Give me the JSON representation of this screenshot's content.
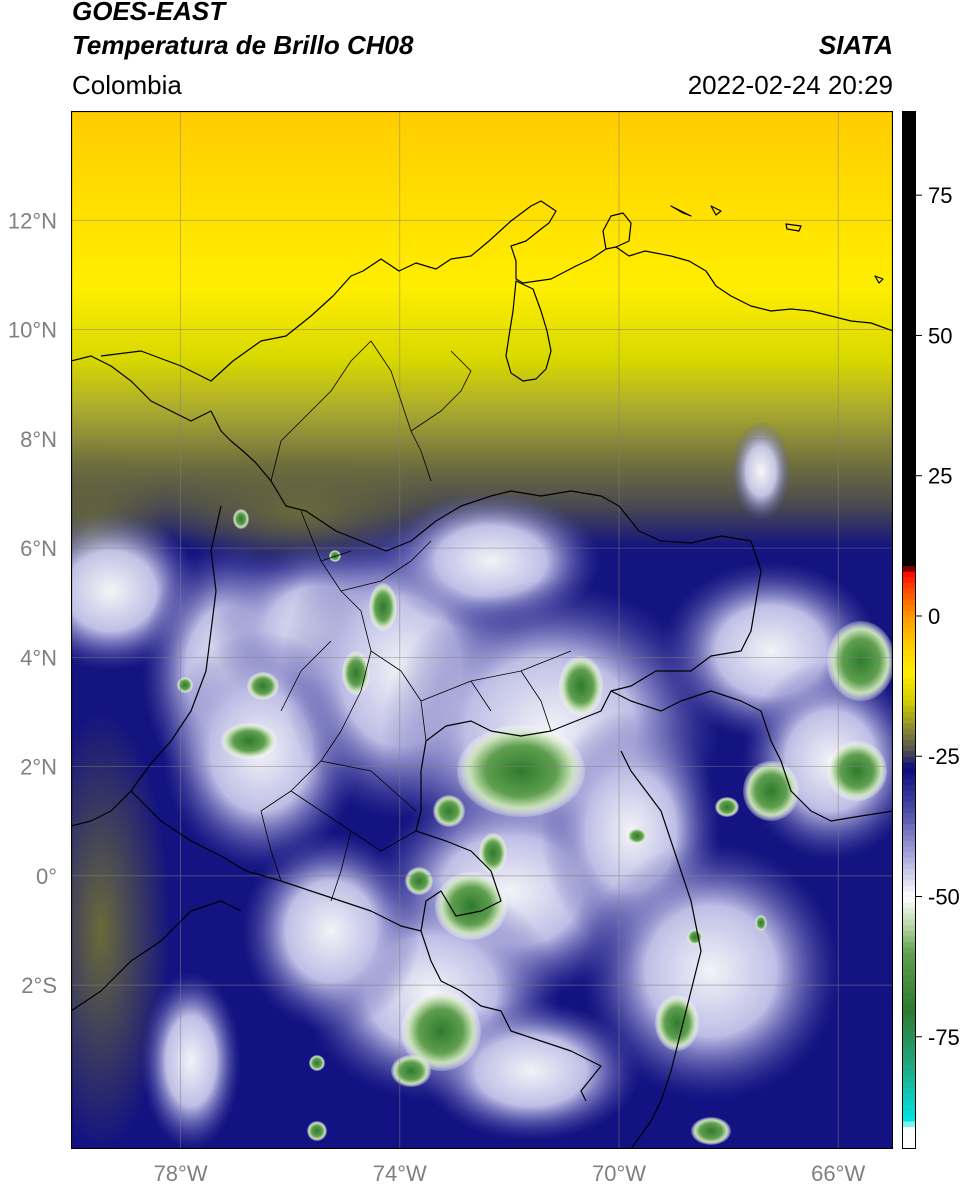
{
  "header": {
    "satellite": "GOES-EAST",
    "product": "Temperatura de Brillo CH08",
    "region": "Colombia",
    "agency": "SIATA",
    "timestamp": "2022-02-24 20:29"
  },
  "map": {
    "lon_range": [
      -80,
      -65
    ],
    "lat_range": [
      -5,
      14
    ],
    "lat_ticks": [
      {
        "value": 12,
        "label": "12°N"
      },
      {
        "value": 10,
        "label": "10°N"
      },
      {
        "value": 8,
        "label": "8°N"
      },
      {
        "value": 6,
        "label": "6°N"
      },
      {
        "value": 4,
        "label": "4°N"
      },
      {
        "value": 2,
        "label": "2°N"
      },
      {
        "value": 0,
        "label": "0°"
      },
      {
        "value": -2,
        "label": "2°S"
      }
    ],
    "lon_ticks": [
      {
        "value": -78,
        "label": "78°W"
      },
      {
        "value": -74,
        "label": "74°W"
      },
      {
        "value": -70,
        "label": "70°W"
      },
      {
        "value": -66,
        "label": "66°W"
      }
    ],
    "gridlines": true
  },
  "colorbar": {
    "range": [
      -95,
      90
    ],
    "ticks": [
      {
        "value": 75,
        "label": "75"
      },
      {
        "value": 50,
        "label": "50"
      },
      {
        "value": 25,
        "label": "25"
      },
      {
        "value": 0,
        "label": "0"
      },
      {
        "value": -25,
        "label": "-25"
      },
      {
        "value": -50,
        "label": "-50"
      },
      {
        "value": -75,
        "label": "-75"
      }
    ],
    "stops": [
      {
        "value": -95,
        "color": "#ffffff"
      },
      {
        "value": -91,
        "color": "#ffffff"
      },
      {
        "value": -90,
        "color": "#00e5e5"
      },
      {
        "value": -80,
        "color": "#20a880"
      },
      {
        "value": -70,
        "color": "#2f7a2f"
      },
      {
        "value": -60,
        "color": "#5f9f4f"
      },
      {
        "value": -55,
        "color": "#b8d8a8"
      },
      {
        "value": -50,
        "color": "#ffffff"
      },
      {
        "value": -42,
        "color": "#a0a0d8"
      },
      {
        "value": -35,
        "color": "#5050a8"
      },
      {
        "value": -27,
        "color": "#0a0a80"
      },
      {
        "value": -24,
        "color": "#505050"
      },
      {
        "value": -20,
        "color": "#8a8a30"
      },
      {
        "value": -15,
        "color": "#d0d000"
      },
      {
        "value": -10,
        "color": "#ffee00"
      },
      {
        "value": -5,
        "color": "#ffcc00"
      },
      {
        "value": 0,
        "color": "#ff9900"
      },
      {
        "value": 5,
        "color": "#ff4400"
      },
      {
        "value": 8,
        "color": "#ff0000"
      },
      {
        "value": 9,
        "color": "#000000"
      },
      {
        "value": 90,
        "color": "#000000"
      }
    ]
  }
}
